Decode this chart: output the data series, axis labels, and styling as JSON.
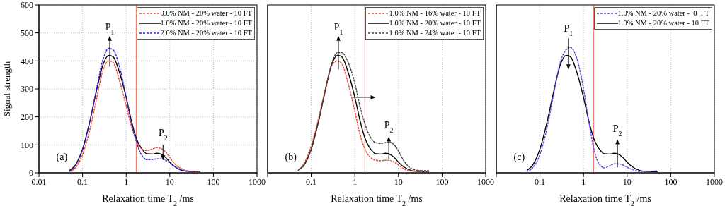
{
  "chart_data": [
    {
      "type": "line",
      "ylabel": "Signal strength",
      "xlabel": "Relaxation time T$_{2}$ /ms",
      "log": "x",
      "grid": true,
      "legend": "top right",
      "xlim": [
        0.01,
        1000
      ],
      "xticks": [
        0.01,
        0.1,
        1,
        10,
        100,
        1000
      ],
      "ylim": [
        0,
        600
      ],
      "yticks": [
        0,
        100,
        200,
        300,
        400,
        500,
        600
      ],
      "x": [
        0.05,
        0.07,
        0.1,
        0.15,
        0.2,
        0.3,
        0.4,
        0.5,
        0.7,
        1,
        1.3,
        1.7,
        2,
        2.5,
        3,
        4,
        5,
        6,
        8,
        10,
        13,
        20,
        30,
        50
      ],
      "series": [
        {
          "name": "0.0% NM - 20% water - 10 FT",
          "color": "#e8452c",
          "line_style": "dashed",
          "values": [
            4,
            20,
            65,
            160,
            250,
            370,
            400,
            395,
            330,
            240,
            170,
            115,
            95,
            82,
            80,
            85,
            90,
            88,
            75,
            55,
            32,
            12,
            6,
            4
          ]
        },
        {
          "name": "1.0% NM - 20% water - 10 FT",
          "color": "#000000",
          "line_style": "solid",
          "values": [
            8,
            30,
            85,
            190,
            280,
            390,
            420,
            415,
            360,
            270,
            190,
            125,
            100,
            78,
            68,
            67,
            70,
            68,
            55,
            38,
            22,
            8,
            5,
            4
          ]
        },
        {
          "name": "2.0% NM - 20% water - 10 FT",
          "color": "#3a1fd6",
          "line_style": "dashed",
          "values": [
            6,
            28,
            82,
            190,
            285,
            410,
            445,
            440,
            380,
            270,
            180,
            115,
            80,
            55,
            47,
            48,
            50,
            50,
            45,
            35,
            22,
            8,
            5,
            4
          ]
        }
      ],
      "ref_lines": [
        {
          "axis": "x",
          "value": 1.7,
          "color": "#f08070"
        }
      ],
      "annotations": [
        "(a)",
        "P$_{1}$",
        "P$_{2}$"
      ]
    },
    {
      "type": "line",
      "xlabel": "Relaxation time T$_{2}$ /ms",
      "log": "x",
      "grid": true,
      "legend": "top right",
      "tick_labels": "x",
      "xlim": [
        0.01,
        1000
      ],
      "xticks": [
        {
          "value": 0.01,
          "label": null
        },
        0.1,
        1,
        10,
        100,
        1000
      ],
      "ylim": [
        0,
        600
      ],
      "yticks": [
        0,
        100,
        200,
        300,
        400,
        500,
        600
      ],
      "x": [
        0.05,
        0.07,
        0.1,
        0.15,
        0.2,
        0.3,
        0.4,
        0.5,
        0.7,
        1,
        1.3,
        1.7,
        2,
        2.5,
        3,
        4,
        5,
        6,
        8,
        10,
        13,
        20,
        30,
        50
      ],
      "series": [
        {
          "name": "1.0% NM - 16% water - 10 FT",
          "color": "#e8452c",
          "line_style": "dashed",
          "values": [
            10,
            36,
            98,
            200,
            285,
            385,
            400,
            390,
            320,
            220,
            140,
            85,
            65,
            50,
            45,
            43,
            45,
            45,
            38,
            28,
            15,
            6,
            5,
            4
          ]
        },
        {
          "name": "1.0% NM - 20% water - 10 FT",
          "color": "#000000",
          "line_style": "solid",
          "values": [
            8,
            30,
            85,
            190,
            280,
            390,
            420,
            415,
            360,
            270,
            190,
            125,
            100,
            78,
            68,
            67,
            70,
            68,
            55,
            38,
            22,
            8,
            5,
            4
          ]
        },
        {
          "name": "1.0% NM - 24% water - 10 FT",
          "color": "#404040",
          "line_style": "dashed",
          "values": [
            8,
            30,
            85,
            190,
            280,
            395,
            430,
            430,
            395,
            320,
            240,
            175,
            145,
            118,
            108,
            105,
            108,
            110,
            100,
            78,
            45,
            15,
            8,
            8
          ]
        }
      ],
      "ref_lines": [
        {
          "axis": "x",
          "value": 1.7,
          "color": "#f08070"
        }
      ],
      "annotations": [
        "(b)",
        "P$_{1}$",
        "P$_{2}$"
      ]
    },
    {
      "type": "line",
      "xlabel": "Relaxation time T$_{2}$ /ms",
      "log": "x",
      "grid": true,
      "legend": "top right",
      "tick_labels": "x",
      "xlim": [
        0.01,
        1000
      ],
      "xticks": [
        {
          "value": 0.01,
          "label": null
        },
        0.1,
        1,
        10,
        100,
        1000
      ],
      "ylim": [
        0,
        600
      ],
      "yticks": [
        0,
        100,
        200,
        300,
        400,
        500,
        600
      ],
      "x": [
        0.05,
        0.07,
        0.1,
        0.15,
        0.2,
        0.3,
        0.4,
        0.5,
        0.7,
        1,
        1.3,
        1.7,
        2,
        2.5,
        3,
        4,
        5,
        6,
        8,
        10,
        13,
        20,
        30,
        50
      ],
      "series": [
        {
          "name": "1.0% NM - 20% water -  0  FT",
          "color": "#6a3be0",
          "line_style": "dashed",
          "values": [
            4,
            20,
            65,
            170,
            270,
            400,
            440,
            448,
            410,
            300,
            190,
            90,
            50,
            25,
            18,
            25,
            32,
            32,
            28,
            20,
            12,
            5,
            5,
            7
          ]
        },
        {
          "name": "1.0% NM - 20% water - 10 FT",
          "color": "#000000",
          "line_style": "solid",
          "values": [
            8,
            30,
            85,
            190,
            280,
            390,
            420,
            415,
            360,
            270,
            190,
            125,
            100,
            78,
            68,
            67,
            70,
            68,
            55,
            38,
            22,
            8,
            5,
            4
          ]
        }
      ],
      "ref_lines": [
        {
          "axis": "x",
          "value": 1.7,
          "color": "#f08070"
        }
      ],
      "annotations": [
        "(c)",
        "P$_{1}$",
        "P$_{2}$"
      ]
    }
  ]
}
